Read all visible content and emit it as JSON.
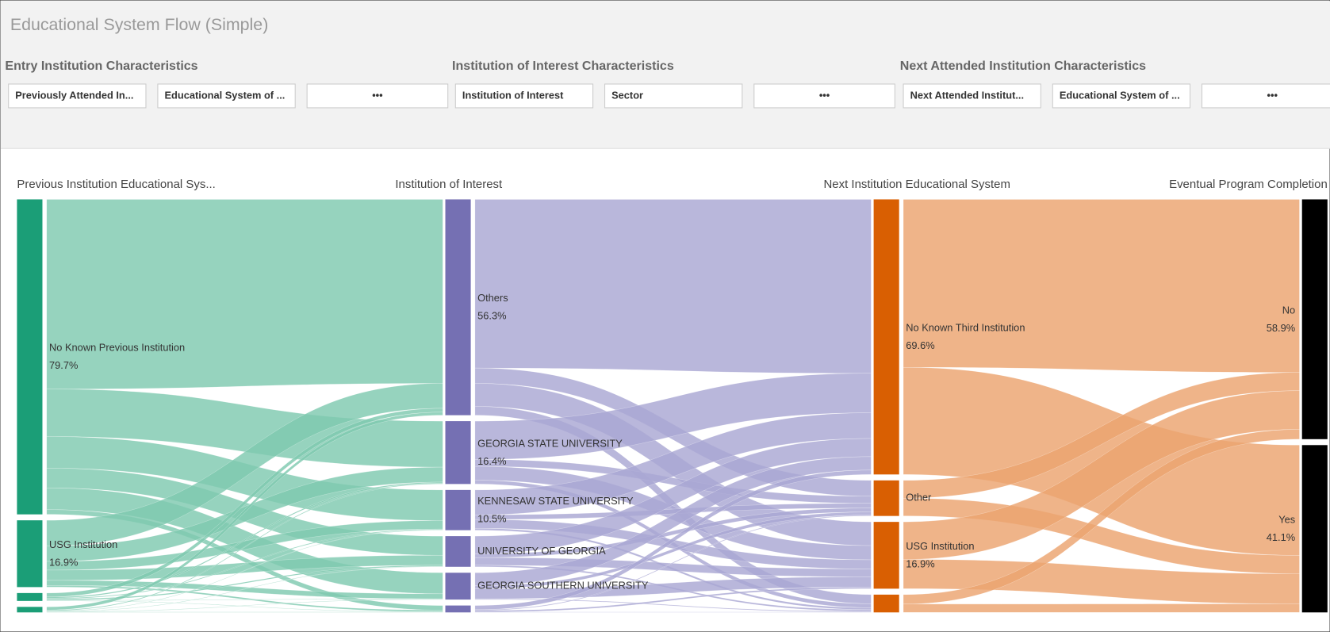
{
  "title": "Educational System Flow (Simple)",
  "filter_groups": [
    {
      "title": "Entry Institution Characteristics",
      "filters": [
        "Previously Attended In...",
        "Educational System of ...",
        "•••"
      ]
    },
    {
      "title": "Institution of Interest Characteristics",
      "filters": [
        "Institution of Interest",
        "Sector",
        "•••"
      ]
    },
    {
      "title": "Next Attended Institution Characteristics",
      "filters": [
        "Next Attended Institut...",
        "Educational System of ...",
        "•••"
      ]
    }
  ],
  "chart_data": {
    "type": "sankey",
    "columns": [
      {
        "title": "Previous Institution Educational Sys...",
        "node_color": "#1b9e77",
        "link_color": "#7fc9b0",
        "nodes": [
          {
            "label": "No Known Previous Institution",
            "value": 79.7,
            "value_label": "79.7%",
            "flows": [
              48,
              12,
              8,
              5,
              5.5,
              1.2
            ]
          },
          {
            "label": "USG Institution",
            "value": 16.9,
            "value_label": "16.9%",
            "flows": [
              6.5,
              3.9,
              2.2,
              2.6,
              1.3,
              0.4
            ]
          },
          {
            "value": 2,
            "flows": [
              1,
              0.3,
              0.2,
              0.3,
              0.1,
              0.1
            ]
          },
          {
            "value": 1.4,
            "flows": [
              0.8,
              0.2,
              0.1,
              0.1,
              0.1,
              0.1
            ]
          }
        ]
      },
      {
        "title": "Institution of Interest",
        "node_color": "#7570b3",
        "link_color": "#aaa7d3",
        "nodes": [
          {
            "label": "Others",
            "value": 56.3,
            "value_label": "56.3%",
            "flows": [
              44,
              4,
              6,
              2.3
            ]
          },
          {
            "label": "GEORGIA STATE UNIVERSITY",
            "value": 16.4,
            "value_label": "16.4%",
            "flows": [
              10,
              1.8,
              3.6,
              1
            ]
          },
          {
            "label": "KENNESAW STATE UNIVERSITY",
            "value": 10.5,
            "value_label": "10.5%",
            "flows": [
              6.5,
              1.2,
              2.3,
              0.5
            ]
          },
          {
            "label": "UNIVERSITY OF GEORGIA",
            "value": 8,
            "flows": [
              4.6,
              1,
              2,
              0.4
            ]
          },
          {
            "label": "GEORGIA SOUTHERN UNIVERSITY",
            "value": 7,
            "flows": [
              3.4,
              0.8,
              2.6,
              0.2
            ]
          },
          {
            "value": 1.8,
            "flows": [
              1.1,
              0.2,
              0.4,
              0.1
            ]
          }
        ]
      },
      {
        "title": "Next Institution Educational System",
        "node_color": "#d95f02",
        "link_color": "#eba36f",
        "nodes": [
          {
            "label": "No Known Third Institution",
            "value": 69.6,
            "value_label": "69.6%",
            "flows": [
              42.5,
              27.1
            ]
          },
          {
            "label": "Other",
            "value": 9,
            "flows": [
              4.5,
              4.5
            ]
          },
          {
            "label": "USG Institution",
            "value": 16.9,
            "value_label": "16.9%",
            "flows": [
              9.5,
              7.4
            ]
          },
          {
            "value": 4.5,
            "flows": [
              2.4,
              2.1
            ]
          }
        ]
      },
      {
        "title": "Eventual Program Completion",
        "node_color": "#000000",
        "nodes": [
          {
            "label": "No",
            "value": 58.9,
            "value_label": "58.9%"
          },
          {
            "label": "Yes",
            "value": 41.1,
            "value_label": "41.1%"
          }
        ]
      }
    ]
  }
}
